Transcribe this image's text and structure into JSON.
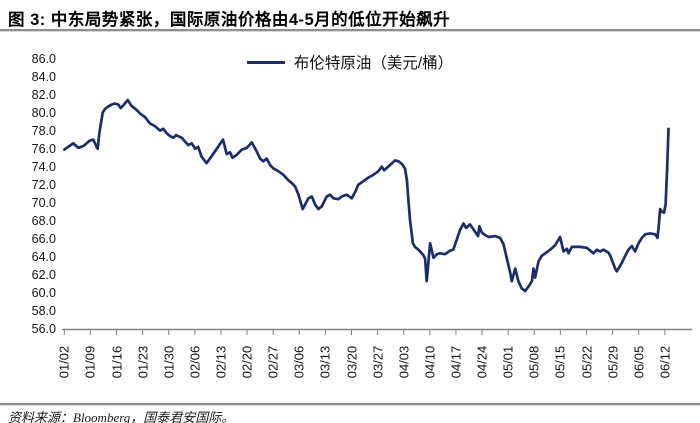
{
  "figure": {
    "title": "图 3: 中东局势紧张，国际原油价格由4-5月的低位开始飙升",
    "source": "资料来源：Bloomberg，国泰君安国际。"
  },
  "chart_data": {
    "type": "line",
    "title": "",
    "xlabel": "",
    "ylabel": "",
    "legend": {
      "label": "布伦特原油（美元/桶）",
      "position": "top-center"
    },
    "line_color": "#1b2d6b",
    "axis_color": "#808080",
    "grid": false,
    "ylim": [
      56.0,
      86.0
    ],
    "ytick_step": 2.0,
    "yticks": [
      "86.0",
      "84.0",
      "82.0",
      "80.0",
      "78.0",
      "76.0",
      "74.0",
      "72.0",
      "70.0",
      "68.0",
      "66.0",
      "64.0",
      "62.0",
      "60.0",
      "58.0",
      "56.0"
    ],
    "x_labels": [
      "01/02",
      "01/09",
      "01/16",
      "01/23",
      "01/30",
      "02/06",
      "02/13",
      "02/20",
      "02/27",
      "03/06",
      "03/13",
      "03/20",
      "03/27",
      "04/03",
      "04/10",
      "04/17",
      "04/24",
      "05/01",
      "05/08",
      "05/15",
      "05/22",
      "05/29",
      "06/05",
      "06/12"
    ],
    "x_unit": "weeks since 01/02 (one tick per week)",
    "series": [
      {
        "name": "布伦特原油（美元/桶）",
        "color": "#1b2d6b",
        "points": [
          [
            0.0,
            75.9
          ],
          [
            0.15,
            76.2
          ],
          [
            0.34,
            76.6
          ],
          [
            0.54,
            76.1
          ],
          [
            0.73,
            76.3
          ],
          [
            0.98,
            76.9
          ],
          [
            1.11,
            77.0
          ],
          [
            1.24,
            76.2
          ],
          [
            1.28,
            76.0
          ],
          [
            1.34,
            77.7
          ],
          [
            1.47,
            80.0
          ],
          [
            1.56,
            80.4
          ],
          [
            1.69,
            80.7
          ],
          [
            1.82,
            80.9
          ],
          [
            1.94,
            81.0
          ],
          [
            2.07,
            80.9
          ],
          [
            2.16,
            80.5
          ],
          [
            2.26,
            80.8
          ],
          [
            2.43,
            81.4
          ],
          [
            2.56,
            80.8
          ],
          [
            2.64,
            80.6
          ],
          [
            2.77,
            80.3
          ],
          [
            2.9,
            79.9
          ],
          [
            3.09,
            79.5
          ],
          [
            3.28,
            78.8
          ],
          [
            3.47,
            78.5
          ],
          [
            3.67,
            78.0
          ],
          [
            3.79,
            78.2
          ],
          [
            3.92,
            77.7
          ],
          [
            4.05,
            77.4
          ],
          [
            4.18,
            77.2
          ],
          [
            4.28,
            77.5
          ],
          [
            4.5,
            77.2
          ],
          [
            4.62,
            76.8
          ],
          [
            4.75,
            76.4
          ],
          [
            4.88,
            76.6
          ],
          [
            5.01,
            76.0
          ],
          [
            5.13,
            76.2
          ],
          [
            5.26,
            75.1
          ],
          [
            5.45,
            74.4
          ],
          [
            5.65,
            75.2
          ],
          [
            5.84,
            76.0
          ],
          [
            6.08,
            77.0
          ],
          [
            6.22,
            75.4
          ],
          [
            6.35,
            75.6
          ],
          [
            6.44,
            75.0
          ],
          [
            6.6,
            75.3
          ],
          [
            6.8,
            75.9
          ],
          [
            6.99,
            76.1
          ],
          [
            7.18,
            76.7
          ],
          [
            7.37,
            75.7
          ],
          [
            7.5,
            74.9
          ],
          [
            7.62,
            74.6
          ],
          [
            7.75,
            74.9
          ],
          [
            7.88,
            74.2
          ],
          [
            8.01,
            73.8
          ],
          [
            8.2,
            73.5
          ],
          [
            8.39,
            73.1
          ],
          [
            8.58,
            72.5
          ],
          [
            8.71,
            72.2
          ],
          [
            8.84,
            71.8
          ],
          [
            8.97,
            70.9
          ],
          [
            9.13,
            69.3
          ],
          [
            9.35,
            70.5
          ],
          [
            9.48,
            70.7
          ],
          [
            9.61,
            69.8
          ],
          [
            9.73,
            69.3
          ],
          [
            9.86,
            69.6
          ],
          [
            10.05,
            70.7
          ],
          [
            10.18,
            70.9
          ],
          [
            10.31,
            70.5
          ],
          [
            10.49,
            70.4
          ],
          [
            10.63,
            70.7
          ],
          [
            10.82,
            70.9
          ],
          [
            11.01,
            70.5
          ],
          [
            11.14,
            71.2
          ],
          [
            11.26,
            72.0
          ],
          [
            11.46,
            72.4
          ],
          [
            11.65,
            72.8
          ],
          [
            11.84,
            73.1
          ],
          [
            12.03,
            73.5
          ],
          [
            12.16,
            74.0
          ],
          [
            12.25,
            73.6
          ],
          [
            12.48,
            74.2
          ],
          [
            12.67,
            74.7
          ],
          [
            12.8,
            74.6
          ],
          [
            12.93,
            74.3
          ],
          [
            13.05,
            73.8
          ],
          [
            13.12,
            72.5
          ],
          [
            13.18,
            70.3
          ],
          [
            13.24,
            68.1
          ],
          [
            13.35,
            65.5
          ],
          [
            13.43,
            65.1
          ],
          [
            13.56,
            64.8
          ],
          [
            13.69,
            64.4
          ],
          [
            13.75,
            64.2
          ],
          [
            13.82,
            63.8
          ],
          [
            13.88,
            61.3
          ],
          [
            14.01,
            65.5
          ],
          [
            14.14,
            63.9
          ],
          [
            14.27,
            64.3
          ],
          [
            14.39,
            64.4
          ],
          [
            14.58,
            64.3
          ],
          [
            14.78,
            64.7
          ],
          [
            14.9,
            64.8
          ],
          [
            15.03,
            65.9
          ],
          [
            15.16,
            67.0
          ],
          [
            15.29,
            67.7
          ],
          [
            15.39,
            67.2
          ],
          [
            15.54,
            67.6
          ],
          [
            15.73,
            66.8
          ],
          [
            15.85,
            66.3
          ],
          [
            15.9,
            67.4
          ],
          [
            15.99,
            66.7
          ],
          [
            16.12,
            66.4
          ],
          [
            16.26,
            66.2
          ],
          [
            16.5,
            66.3
          ],
          [
            16.69,
            66.1
          ],
          [
            16.82,
            65.4
          ],
          [
            16.95,
            63.8
          ],
          [
            17.08,
            62.2
          ],
          [
            17.14,
            61.3
          ],
          [
            17.27,
            62.7
          ],
          [
            17.39,
            61.3
          ],
          [
            17.52,
            60.5
          ],
          [
            17.65,
            60.2
          ],
          [
            17.78,
            60.7
          ],
          [
            17.91,
            61.3
          ],
          [
            17.97,
            62.7
          ],
          [
            18.03,
            61.7
          ],
          [
            18.16,
            63.5
          ],
          [
            18.28,
            64.1
          ],
          [
            18.42,
            64.4
          ],
          [
            18.61,
            64.8
          ],
          [
            18.8,
            65.3
          ],
          [
            18.99,
            66.2
          ],
          [
            19.12,
            64.6
          ],
          [
            19.25,
            64.9
          ],
          [
            19.31,
            64.4
          ],
          [
            19.44,
            65.1
          ],
          [
            19.76,
            65.1
          ],
          [
            20.01,
            65.0
          ],
          [
            20.27,
            64.4
          ],
          [
            20.4,
            64.8
          ],
          [
            20.52,
            64.6
          ],
          [
            20.65,
            64.8
          ],
          [
            20.83,
            64.5
          ],
          [
            20.9,
            64.2
          ],
          [
            21.1,
            62.7
          ],
          [
            21.16,
            62.4
          ],
          [
            21.35,
            63.3
          ],
          [
            21.48,
            64.1
          ],
          [
            21.61,
            64.8
          ],
          [
            21.74,
            65.2
          ],
          [
            21.86,
            64.6
          ],
          [
            21.99,
            65.5
          ],
          [
            22.12,
            66.1
          ],
          [
            22.25,
            66.5
          ],
          [
            22.44,
            66.6
          ],
          [
            22.63,
            66.5
          ],
          [
            22.72,
            66.1
          ],
          [
            22.77,
            67.5
          ],
          [
            22.82,
            69.3
          ],
          [
            22.89,
            69.0
          ],
          [
            22.97,
            68.9
          ],
          [
            23.03,
            69.8
          ],
          [
            23.09,
            74.0
          ],
          [
            23.14,
            78.2
          ]
        ]
      }
    ]
  }
}
